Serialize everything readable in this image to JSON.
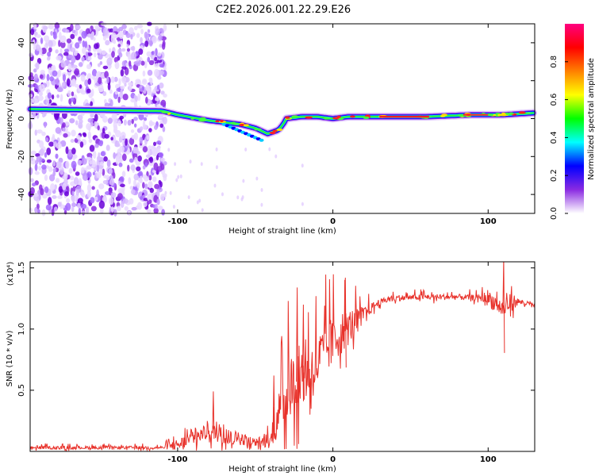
{
  "title": "C2E2.2026.001.22.29.E26",
  "chart_data": [
    {
      "type": "heatmap",
      "xlabel": "Height of straight line (km)",
      "ylabel": "Frequency (Hz)",
      "xlim": [
        -195,
        130
      ],
      "ylim": [
        -50,
        50
      ],
      "xticks": [
        -100,
        0,
        100
      ],
      "xtick_labels": [
        "-100",
        "0",
        "100"
      ],
      "yticks": [
        -40,
        -20,
        0,
        20,
        40
      ],
      "ytick_labels": [
        "-40",
        "-20",
        "0",
        "20",
        "40"
      ],
      "noise_region_x": [
        -195,
        -108
      ],
      "ridge": {
        "x": [
          -195,
          -150,
          -110,
          -100,
          -80,
          -60,
          -50,
          -42,
          -35,
          -32,
          -30,
          -20,
          -10,
          0,
          10,
          30,
          60,
          90,
          110,
          130
        ],
        "y": [
          5,
          4.5,
          4,
          2,
          -1,
          -3,
          -5,
          -8,
          -6,
          -3,
          0,
          1,
          1,
          0,
          1,
          1,
          1,
          2,
          2,
          3
        ]
      },
      "colorbar": {
        "label": "Normalized spectral amplitude",
        "ticks": [
          0.0,
          0.2,
          0.4,
          0.6,
          0.8
        ],
        "tick_labels": [
          "0.0",
          "0.2",
          "0.4",
          "0.6",
          "0.8"
        ],
        "range": [
          0,
          1
        ],
        "colors": [
          "#ffffff",
          "#8a2be2",
          "#0000ff",
          "#00ffff",
          "#00ff00",
          "#ffff00",
          "#ff8000",
          "#ff0000",
          "#ff0080"
        ]
      }
    },
    {
      "type": "line",
      "xlabel": "Height of straight line (km)",
      "ylabel": "SNR (10 * v/v)",
      "scale_label": "(x10⁴)",
      "xlim": [
        -195,
        130
      ],
      "ylim": [
        0,
        1.55
      ],
      "xticks": [
        -100,
        0,
        100
      ],
      "xtick_labels": [
        "-100",
        "0",
        "100"
      ],
      "yticks": [
        0.5,
        1.0,
        1.5
      ],
      "ytick_labels": [
        "0.5",
        "1.0",
        "1.5"
      ],
      "line_color": "#e8322b",
      "envelope": {
        "x": [
          -195,
          -110,
          -100,
          -90,
          -80,
          -70,
          -60,
          -50,
          -40,
          -35,
          -30,
          -25,
          -20,
          -15,
          -10,
          -5,
          0,
          5,
          10,
          15,
          20,
          30,
          40,
          60,
          80,
          100,
          105,
          110,
          115,
          120,
          130
        ],
        "y": [
          0.03,
          0.03,
          0.05,
          0.1,
          0.16,
          0.12,
          0.1,
          0.07,
          0.08,
          0.3,
          0.45,
          0.55,
          0.6,
          0.62,
          0.7,
          0.8,
          0.88,
          0.95,
          1.0,
          1.06,
          1.12,
          1.22,
          1.25,
          1.26,
          1.26,
          1.25,
          1.2,
          1.15,
          1.22,
          1.22,
          1.19
        ]
      },
      "noise_amplitude": {
        "x": [
          -195,
          -110,
          -100,
          -70,
          -50,
          -40,
          -30,
          -10,
          0,
          10,
          20,
          30,
          95,
          100,
          115,
          120,
          130
        ],
        "y": [
          0.02,
          0.02,
          0.08,
          0.12,
          0.06,
          0.1,
          0.45,
          0.4,
          0.35,
          0.25,
          0.1,
          0.04,
          0.04,
          0.12,
          0.12,
          0.04,
          0.03
        ]
      },
      "peaks": [
        {
          "x": -77,
          "y": 0.49
        },
        {
          "x": -38,
          "y": 0.62
        },
        {
          "x": -23,
          "y": 1.34
        },
        {
          "x": -19,
          "y": 1.2
        },
        {
          "x": 8,
          "y": 1.42
        },
        {
          "x": 110,
          "y": 1.58
        }
      ]
    }
  ]
}
